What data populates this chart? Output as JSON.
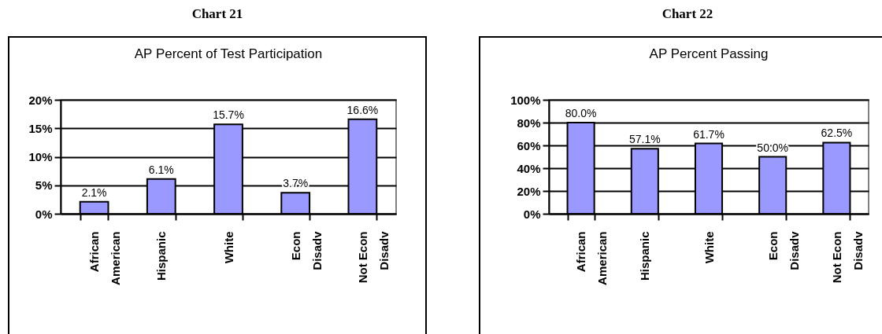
{
  "chart_data": [
    {
      "type": "bar",
      "title": "Chart 21",
      "subtitle": "AP Percent of Test Participation",
      "categories": [
        "African American",
        "Hispanic",
        "White",
        "Econ Disadv",
        "Not Econ Disadv"
      ],
      "values": [
        2.1,
        6.1,
        15.7,
        3.7,
        16.6
      ],
      "value_labels": [
        "2.1%",
        "6.1%",
        "15.7%",
        "3.7%",
        "16.6%"
      ],
      "color": "#9999ff",
      "ylim": [
        0,
        20
      ],
      "yticks": [
        {
          "value": 0,
          "label": "0%"
        },
        {
          "value": 5,
          "label": "5%"
        },
        {
          "value": 10,
          "label": "10%"
        },
        {
          "value": 15,
          "label": "15%"
        },
        {
          "value": 20,
          "label": "20%"
        }
      ],
      "grid": "y"
    },
    {
      "type": "bar",
      "title": "Chart 22",
      "subtitle": "AP  Percent Passing",
      "categories": [
        "African American",
        "Hispanic",
        "White",
        "Econ Disadv",
        "Not Econ Disadv"
      ],
      "values": [
        80.0,
        57.1,
        61.7,
        50.0,
        62.5
      ],
      "value_labels": [
        "80.0%",
        "57.1%",
        "61.7%",
        "50.0%",
        "62.5%"
      ],
      "color": "#9999ff",
      "ylim": [
        0,
        100
      ],
      "yticks": [
        {
          "value": 0,
          "label": "0%"
        },
        {
          "value": 20,
          "label": "20%"
        },
        {
          "value": 40,
          "label": "40%"
        },
        {
          "value": 60,
          "label": "60%"
        },
        {
          "value": 80,
          "label": "80%"
        },
        {
          "value": 100,
          "label": "100%"
        }
      ],
      "grid": "y"
    }
  ]
}
